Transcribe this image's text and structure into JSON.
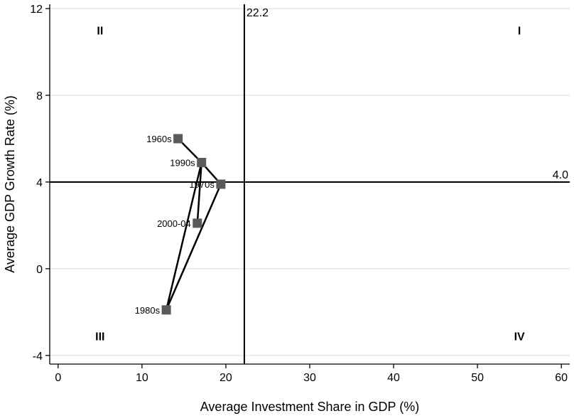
{
  "chart_data": {
    "type": "scatter",
    "title": "",
    "xlabel": "Average Investment Share in GDP (%)",
    "ylabel": "Average GDP Growth Rate (%)",
    "xlim": [
      -1,
      61
    ],
    "ylim": [
      -4.4,
      12.2
    ],
    "xticks": [
      0,
      10,
      20,
      30,
      40,
      50,
      60
    ],
    "yticks": [
      -4,
      0,
      4,
      8,
      12
    ],
    "grid": "horizontal",
    "points": [
      {
        "label": "1960s",
        "x": 14.3,
        "y": 6.0
      },
      {
        "label": "1970s",
        "x": 19.4,
        "y": 3.9
      },
      {
        "label": "1980s",
        "x": 12.9,
        "y": -1.9
      },
      {
        "label": "1990s",
        "x": 17.1,
        "y": 4.9
      },
      {
        "label": "2000-04",
        "x": 16.6,
        "y": 2.1
      }
    ],
    "path_order": [
      "1960s",
      "1990s",
      "1970s",
      "1980s",
      "1990s",
      "2000-04"
    ],
    "ref_lines": {
      "vertical": {
        "x": 22.2,
        "label": "22.2"
      },
      "horizontal": {
        "y": 4.0,
        "label": "4.0"
      }
    },
    "quadrants": [
      {
        "label": "II",
        "x": 5,
        "y": 11
      },
      {
        "label": "I",
        "x": 55,
        "y": 11
      },
      {
        "label": "III",
        "x": 5,
        "y": -3.1
      },
      {
        "label": "IV",
        "x": 55,
        "y": -3.1
      }
    ],
    "marker_color": "#5a5a5a",
    "line_color": "#000000",
    "grid_color": "#e6e6e6"
  }
}
